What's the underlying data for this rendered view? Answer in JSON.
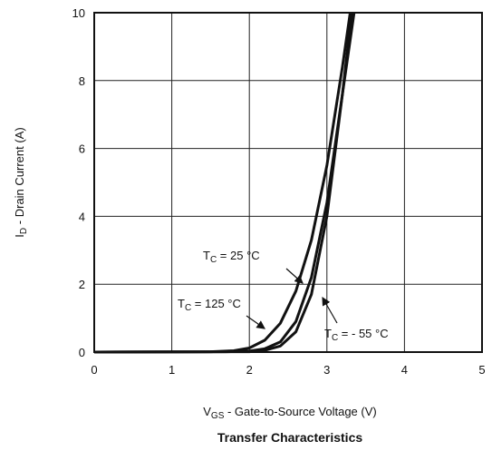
{
  "chart_data": {
    "type": "line",
    "title": "Transfer Characteristics",
    "xlabel": {
      "main": "V",
      "sub": "GS",
      "rest": " - Gate-to-Source Voltage (V)"
    },
    "ylabel": {
      "main": "I",
      "sub": "D",
      "rest": " - Drain Current (A)"
    },
    "xlim": [
      0,
      5
    ],
    "ylim": [
      0,
      10
    ],
    "xticks": [
      "0",
      "1",
      "2",
      "3",
      "4",
      "5"
    ],
    "yticks": [
      "0",
      "2",
      "4",
      "6",
      "8",
      "10"
    ],
    "grid": true,
    "series": [
      {
        "name": "TC = 125 °C",
        "x": [
          0,
          1.5,
          1.8,
          2.0,
          2.2,
          2.4,
          2.6,
          2.8,
          3.0,
          3.2,
          3.3
        ],
        "y": [
          0,
          0.01,
          0.04,
          0.12,
          0.35,
          0.85,
          1.8,
          3.3,
          5.5,
          8.4,
          10
        ]
      },
      {
        "name": "TC = 25 °C",
        "x": [
          0,
          1.7,
          2.0,
          2.2,
          2.4,
          2.6,
          2.8,
          3.0,
          3.2,
          3.32
        ],
        "y": [
          0,
          0.01,
          0.03,
          0.1,
          0.3,
          0.9,
          2.2,
          4.4,
          7.6,
          10
        ]
      },
      {
        "name": "TC = - 55 °C",
        "x": [
          0,
          2.0,
          2.2,
          2.4,
          2.6,
          2.8,
          3.0,
          3.2,
          3.35
        ],
        "y": [
          0,
          0.01,
          0.05,
          0.18,
          0.6,
          1.7,
          4.0,
          7.6,
          10
        ]
      }
    ],
    "annotations": [
      {
        "main": "T",
        "sub": "C",
        "rest": " = 25 °C"
      },
      {
        "main": "T",
        "sub": "C",
        "rest": " = 125 °C"
      },
      {
        "main": "T",
        "sub": "C",
        "rest": " = - 55 °C"
      }
    ]
  }
}
